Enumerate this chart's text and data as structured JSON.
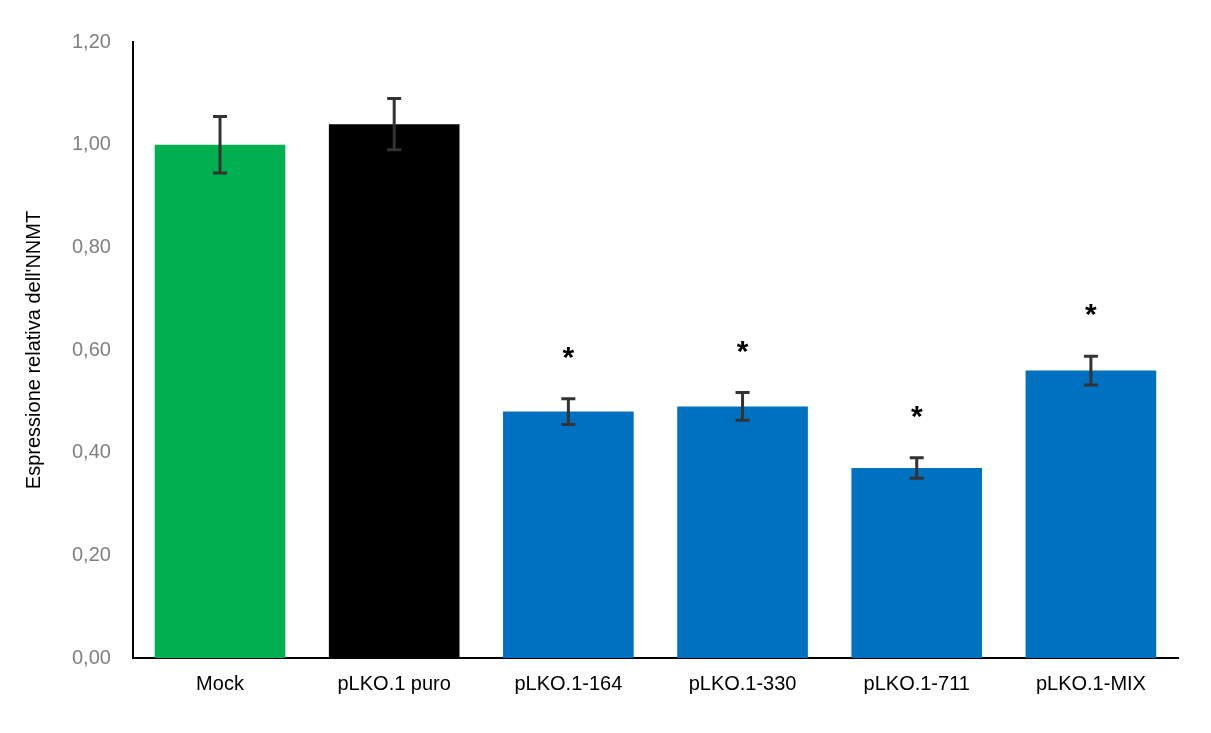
{
  "chart_data": {
    "type": "bar",
    "ylabel": "Espressione relativa dell'NNMT",
    "categories": [
      "Mock",
      "pLKO.1 puro",
      "pLKO.1-164",
      "pLKO.1-330",
      "pLKO.1-711",
      "pLKO.1-MIX"
    ],
    "values": [
      1.0,
      1.04,
      0.48,
      0.49,
      0.37,
      0.56
    ],
    "errors": [
      0.055,
      0.05,
      0.025,
      0.027,
      0.02,
      0.028
    ],
    "colors": [
      "#00b050",
      "#000000",
      "#0070c0",
      "#0070c0",
      "#0070c0",
      "#0070c0"
    ],
    "ylim": [
      0,
      1.2
    ],
    "yticks": [
      {
        "value": 0,
        "label": "0,00"
      },
      {
        "value": 0.2,
        "label": "0,20"
      },
      {
        "value": 0.4,
        "label": "0,40"
      },
      {
        "value": 0.6,
        "label": "0,60"
      },
      {
        "value": 0.8,
        "label": "0,80"
      },
      {
        "value": 1.0,
        "label": "1,00"
      },
      {
        "value": 1.2,
        "label": "1,20"
      }
    ],
    "grid": false,
    "legend": false,
    "annotations": [
      "*",
      "*",
      "*",
      "*"
    ]
  }
}
